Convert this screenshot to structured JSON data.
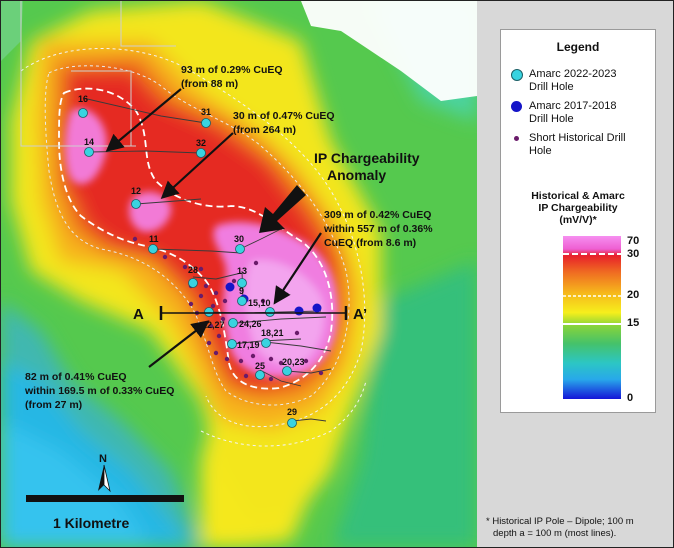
{
  "map": {
    "ip_label_line1": "IP Chargeability",
    "ip_label_line2": "Anomaly",
    "section_start": "A",
    "section_end": "A’",
    "scale_label": "1 Kilometre",
    "north_label": "N",
    "callouts": {
      "c1_line1": "93 m of 0.29% CuEQ",
      "c1_line2": "(from 88 m)",
      "c2_line1": "30 m of 0.47% CuEQ",
      "c2_line2": "(from 264 m)",
      "c3_line1": "309 m of 0.42% CuEQ",
      "c3_line2": "within 557 m of 0.36%",
      "c3_line3": "CuEQ (from 8.6 m)",
      "c4_line1": "82 m of 0.41% CuEQ",
      "c4_line2": "within 169.5 m of 0.33% CuEQ",
      "c4_line3": "(from 27 m)"
    },
    "hole_labels": {
      "h16": "16",
      "h31": "31",
      "h14": "14",
      "h32": "32",
      "h12": "12",
      "h11": "11",
      "h30": "30",
      "h13": "13",
      "h28": "28",
      "h9": "9",
      "h15_10": "15,10",
      "h22_27": "22,27",
      "h24_26": "24,26",
      "h18_21": "18,21",
      "h17_19": "17,19",
      "h20_23": "20,23",
      "h25": "25",
      "h29": "29"
    }
  },
  "legend": {
    "title": "Legend",
    "amarc_2022_line1": "Amarc 2022-2023",
    "amarc_2022_line2": "Drill Hole",
    "amarc_2017_line1": "Amarc 2017-2018",
    "amarc_2017_line2": "Drill Hole",
    "historical_line1": "Short Historical Drill",
    "historical_line2": "Hole",
    "colorbar_title_line1": "Historical & Amarc",
    "colorbar_title_line2": "IP Chargeability",
    "colorbar_title_line3": "(mV/V)*",
    "ticks": {
      "t70": "70",
      "t30": "30",
      "t20": "20",
      "t15": "15",
      "t0": "0"
    }
  },
  "colors": {
    "amarc_2022": "#39d3e0",
    "amarc_2017": "#1515c8",
    "historical": "#6a1b6a",
    "contour_30": "#ffffff"
  },
  "footnote": {
    "line1": "* Historical IP Pole – Dipole; 100 m",
    "line2": "depth a = 100 m (most lines)."
  }
}
